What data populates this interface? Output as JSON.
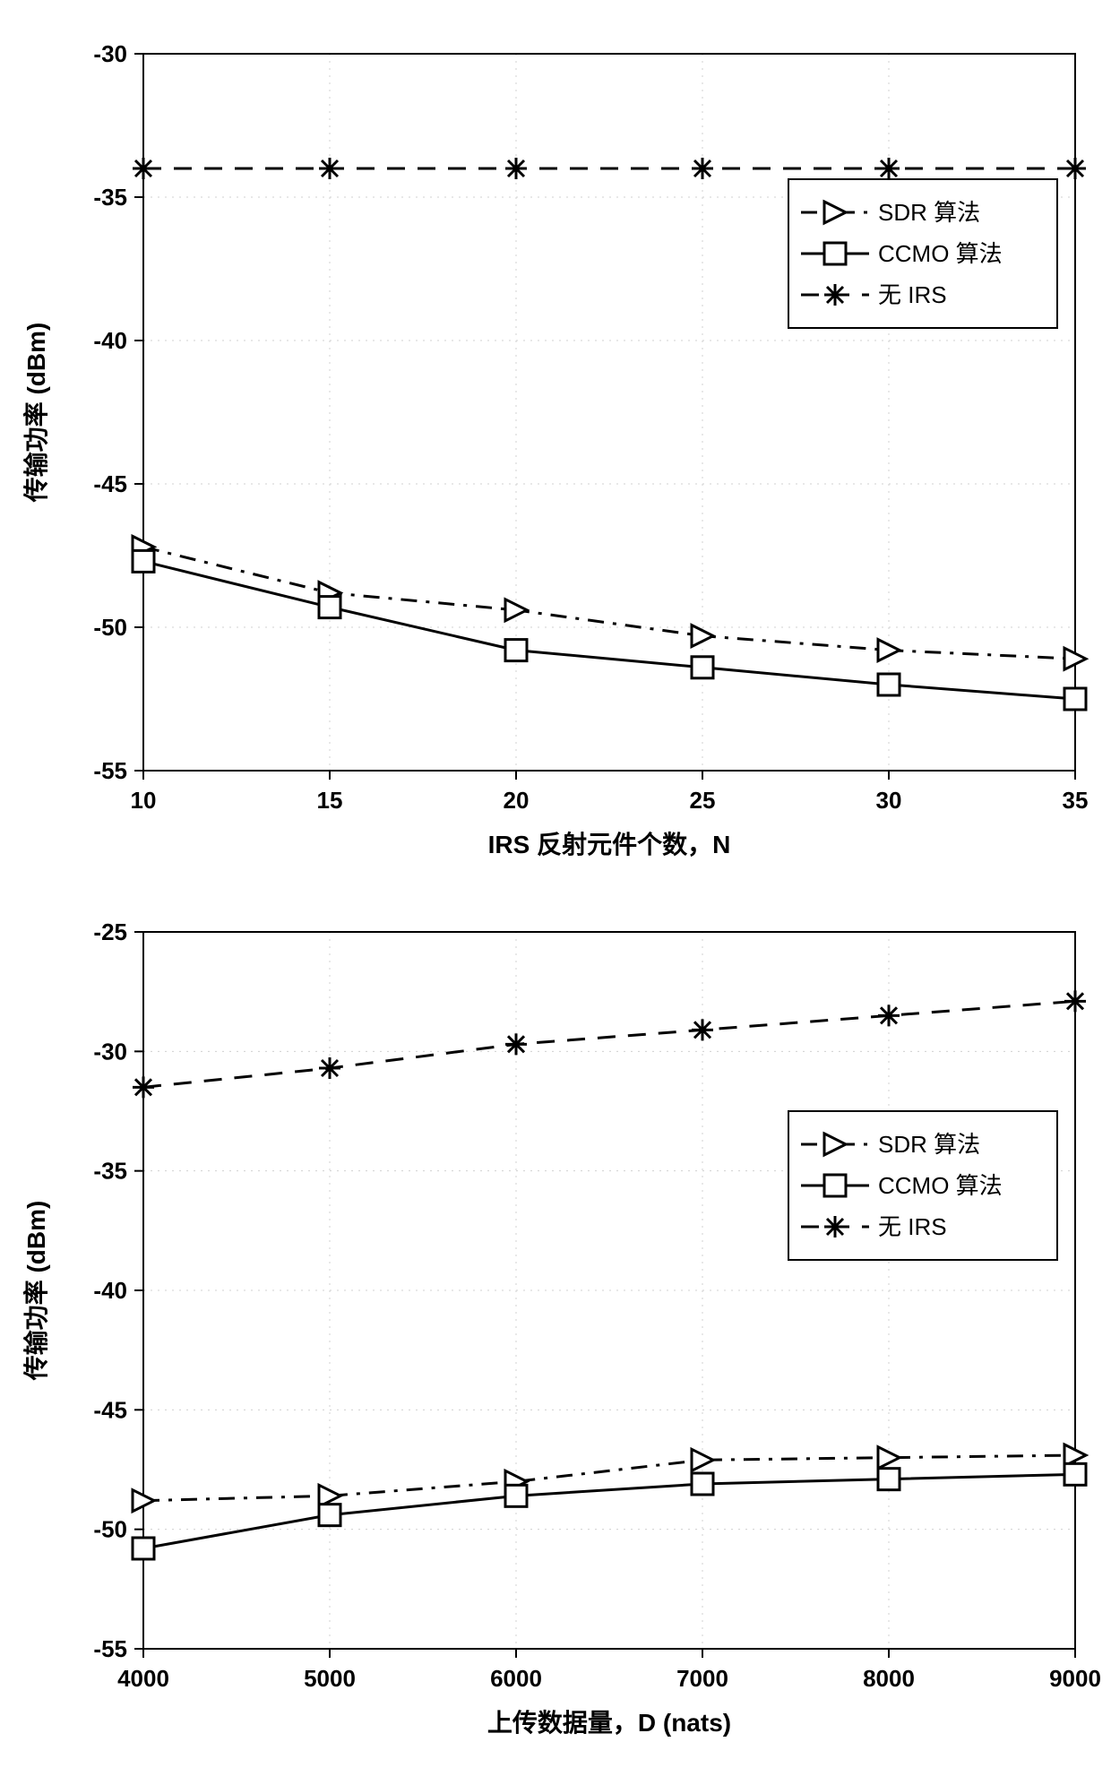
{
  "chart_top": {
    "type": "line",
    "xlabel": "IRS 反射元件个数，N",
    "ylabel": "传输功率 (dBm)",
    "label_fontsize": 28,
    "tick_fontsize": 26,
    "xlim": [
      10,
      35
    ],
    "ylim": [
      -55,
      -30
    ],
    "xtick_step": 5,
    "ytick_step": 5,
    "xticks": [
      10,
      15,
      20,
      25,
      30,
      35
    ],
    "yticks": [
      -55,
      -50,
      -45,
      -40,
      -35,
      -30
    ],
    "background_color": "#ffffff",
    "grid_color": "#d0d0d0",
    "axis_color": "#000000",
    "line_width": 3,
    "marker_size": 12,
    "legend": {
      "position": "upper-right",
      "fontsize": 26,
      "border_color": "#000000",
      "bg_color": "#ffffff",
      "items": [
        "SDR 算法",
        "CCMO 算法",
        "无 IRS"
      ]
    },
    "series": [
      {
        "name": "SDR 算法",
        "color": "#000000",
        "linestyle": "dashdot",
        "marker": "triangle-right",
        "x": [
          10,
          15,
          20,
          25,
          30,
          35
        ],
        "y": [
          -47.2,
          -48.8,
          -49.4,
          -50.3,
          -50.8,
          -51.1
        ]
      },
      {
        "name": "CCMO 算法",
        "color": "#000000",
        "linestyle": "solid",
        "marker": "square",
        "x": [
          10,
          15,
          20,
          25,
          30,
          35
        ],
        "y": [
          -47.7,
          -49.3,
          -50.8,
          -51.4,
          -52.0,
          -52.5
        ]
      },
      {
        "name": "无 IRS",
        "color": "#000000",
        "linestyle": "dashed",
        "marker": "asterisk",
        "x": [
          10,
          15,
          20,
          25,
          30,
          35
        ],
        "y": [
          -34.0,
          -34.0,
          -34.0,
          -34.0,
          -34.0,
          -34.0
        ]
      }
    ]
  },
  "chart_bottom": {
    "type": "line",
    "xlabel": "上传数据量，D (nats)",
    "ylabel": "传输功率 (dBm)",
    "label_fontsize": 28,
    "tick_fontsize": 26,
    "xlim": [
      4000,
      9000
    ],
    "ylim": [
      -55,
      -25
    ],
    "xtick_step": 1000,
    "ytick_step": 5,
    "xticks": [
      4000,
      5000,
      6000,
      7000,
      8000,
      9000
    ],
    "yticks": [
      -55,
      -50,
      -45,
      -40,
      -35,
      -30,
      -25
    ],
    "background_color": "#ffffff",
    "grid_color": "#d0d0d0",
    "axis_color": "#000000",
    "line_width": 3,
    "marker_size": 12,
    "legend": {
      "position": "upper-right",
      "fontsize": 26,
      "border_color": "#000000",
      "bg_color": "#ffffff",
      "items": [
        "SDR 算法",
        "CCMO 算法",
        "无 IRS"
      ]
    },
    "series": [
      {
        "name": "SDR 算法",
        "color": "#000000",
        "linestyle": "dashdot",
        "marker": "triangle-right",
        "x": [
          4000,
          5000,
          6000,
          7000,
          8000,
          9000
        ],
        "y": [
          -48.8,
          -48.6,
          -48.0,
          -47.1,
          -47.0,
          -46.9
        ]
      },
      {
        "name": "CCMO 算法",
        "color": "#000000",
        "linestyle": "solid",
        "marker": "square",
        "x": [
          4000,
          5000,
          6000,
          7000,
          8000,
          9000
        ],
        "y": [
          -50.8,
          -49.4,
          -48.6,
          -48.1,
          -47.9,
          -47.7
        ]
      },
      {
        "name": "无 IRS",
        "color": "#000000",
        "linestyle": "dashed",
        "marker": "asterisk",
        "x": [
          4000,
          5000,
          6000,
          7000,
          8000,
          9000
        ],
        "y": [
          -31.5,
          -30.7,
          -29.7,
          -29.1,
          -28.5,
          -27.9
        ]
      }
    ]
  }
}
